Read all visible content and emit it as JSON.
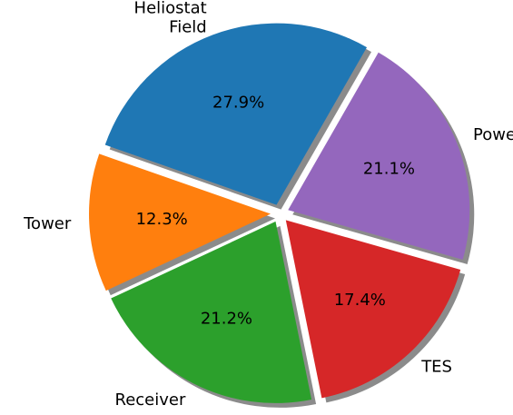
{
  "chart_data": {
    "type": "pie",
    "title": "",
    "slices": [
      {
        "label": "Heliostat\nField",
        "value": 27.9,
        "pct_text": "27.9%",
        "color": "#1f77b4"
      },
      {
        "label": "Tower",
        "value": 12.3,
        "pct_text": "12.3%",
        "color": "#ff7f0e"
      },
      {
        "label": "Receiver",
        "value": 21.2,
        "pct_text": "21.2%",
        "color": "#2ca02c"
      },
      {
        "label": "TES",
        "value": 17.4,
        "pct_text": "17.4%",
        "color": "#d62728"
      },
      {
        "label": "Power Block",
        "value": 21.1,
        "pct_text": "21.1%",
        "color": "#9467bd"
      }
    ],
    "exploded": true,
    "shadow": true,
    "direction": "counterclockwise",
    "legend": "none"
  }
}
